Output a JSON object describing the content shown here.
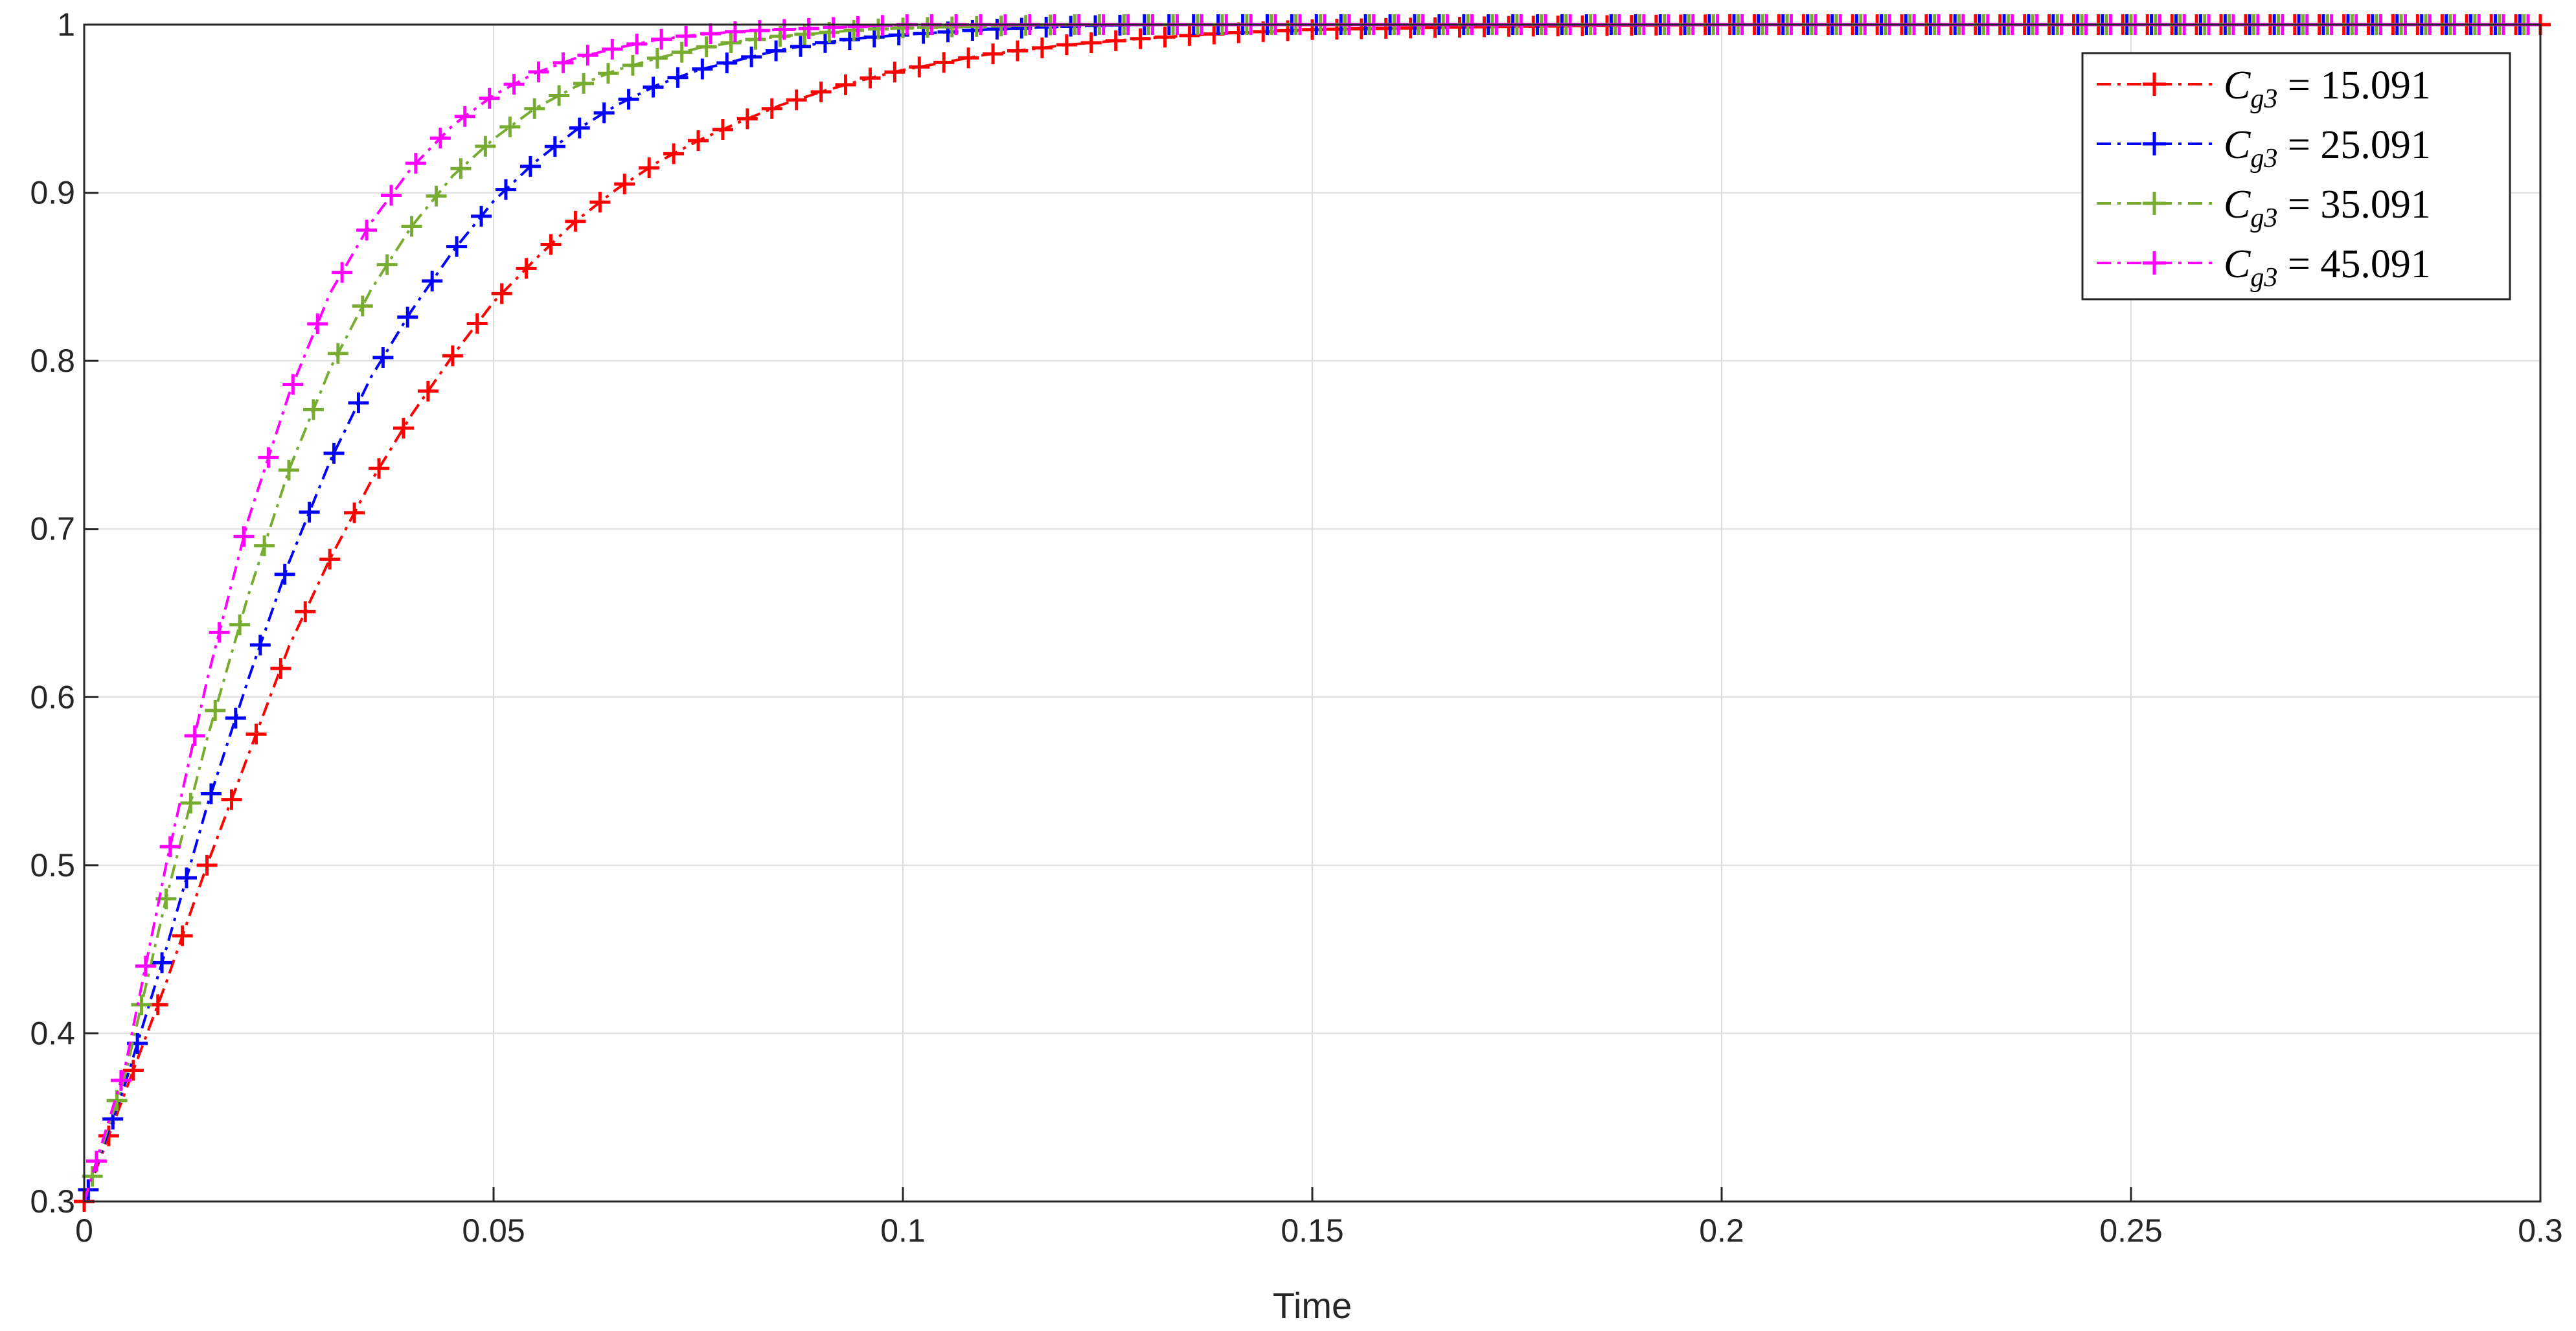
{
  "chart_data": {
    "type": "line",
    "title": "",
    "xlabel": "Time",
    "ylabel": "",
    "xlim": [
      0,
      0.3
    ],
    "ylim": [
      0.3,
      1
    ],
    "xticks": [
      0,
      0.05,
      0.1,
      0.15,
      0.2,
      0.25,
      0.3
    ],
    "xtick_labels": [
      "0",
      "0.05",
      "0.1",
      "0.15",
      "0.2",
      "0.25",
      "0.3"
    ],
    "yticks": [
      0.3,
      0.4,
      0.5,
      0.6,
      0.7,
      0.8,
      0.9,
      1
    ],
    "ytick_labels": [
      "0.3",
      "0.4",
      "0.5",
      "0.6",
      "0.7",
      "0.8",
      "0.9",
      "1"
    ],
    "grid": true,
    "legend_position": "top-right",
    "x": [
      0,
      0.005,
      0.01,
      0.015,
      0.02,
      0.025,
      0.03,
      0.035,
      0.04,
      0.045,
      0.05,
      0.055,
      0.06,
      0.065,
      0.07,
      0.075,
      0.08,
      0.085,
      0.09,
      0.095,
      0.1,
      0.11,
      0.12,
      0.13,
      0.14,
      0.15,
      0.175,
      0.2,
      0.225,
      0.25,
      0.275,
      0.3
    ],
    "series": [
      {
        "name": "C_{g3} = 15.091",
        "color": "#ff0000",
        "values": [
          0.3,
          0.365,
          0.43,
          0.5,
          0.565,
          0.63,
          0.682,
          0.728,
          0.768,
          0.803,
          0.835,
          0.86,
          0.883,
          0.902,
          0.918,
          0.931,
          0.942,
          0.952,
          0.96,
          0.967,
          0.973,
          0.982,
          0.988,
          0.992,
          0.995,
          0.997,
          0.999,
          1.0,
          1.0,
          1.0,
          1.0,
          1.0
        ]
      },
      {
        "name": "C_{g3} = 25.091",
        "color": "#0000ff",
        "values": [
          0.3,
          0.37,
          0.45,
          0.535,
          0.61,
          0.68,
          0.74,
          0.79,
          0.83,
          0.865,
          0.895,
          0.918,
          0.937,
          0.952,
          0.964,
          0.973,
          0.979,
          0.985,
          0.989,
          0.992,
          0.994,
          0.997,
          0.999,
          1.0,
          1.0,
          1.0,
          1.0,
          1.0,
          1.0,
          1.0,
          1.0,
          1.0
        ]
      },
      {
        "name": "C_{g3} = 35.091",
        "color": "#77ac30",
        "values": [
          0.3,
          0.375,
          0.48,
          0.575,
          0.66,
          0.735,
          0.795,
          0.842,
          0.88,
          0.91,
          0.932,
          0.95,
          0.963,
          0.973,
          0.98,
          0.986,
          0.99,
          0.993,
          0.995,
          0.997,
          0.998,
          0.999,
          1.0,
          1.0,
          1.0,
          1.0,
          1.0,
          1.0,
          1.0,
          1.0,
          1.0,
          1.0
        ]
      },
      {
        "name": "C_{g3} = 45.091",
        "color": "#ff00ff",
        "values": [
          0.3,
          0.38,
          0.5,
          0.61,
          0.705,
          0.78,
          0.84,
          0.882,
          0.915,
          0.94,
          0.958,
          0.971,
          0.98,
          0.986,
          0.991,
          0.994,
          0.996,
          0.997,
          0.998,
          0.999,
          1.0,
          1.0,
          1.0,
          1.0,
          1.0,
          1.0,
          1.0,
          1.0,
          1.0,
          1.0,
          1.0,
          1.0
        ]
      }
    ],
    "legend": [
      {
        "sym": "C",
        "sub": "g3",
        "eq": " = 15.091"
      },
      {
        "sym": "C",
        "sub": "g3",
        "eq": " = 25.091"
      },
      {
        "sym": "C",
        "sub": "g3",
        "eq": " = 35.091"
      },
      {
        "sym": "C",
        "sub": "g3",
        "eq": " = 45.091"
      }
    ]
  }
}
